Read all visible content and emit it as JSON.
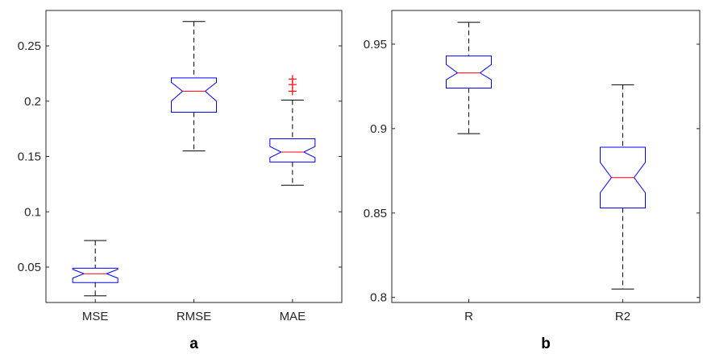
{
  "chart_data": [
    {
      "type": "box",
      "panel_label": "a",
      "categories": [
        "MSE",
        "RMSE",
        "MAE"
      ],
      "ylim": [
        0.018,
        0.282
      ],
      "yticks": [
        0.05,
        0.1,
        0.15,
        0.2,
        0.25
      ],
      "ytick_labels": [
        "0.05",
        "0.1",
        "0.15",
        "0.2",
        "0.25"
      ],
      "notched": true,
      "boxes": [
        {
          "name": "MSE",
          "whisker_low": 0.024,
          "q1": 0.036,
          "median": 0.044,
          "q3": 0.049,
          "whisker_high": 0.074,
          "notch_low": 0.04,
          "notch_high": 0.048,
          "outliers": []
        },
        {
          "name": "RMSE",
          "whisker_low": 0.155,
          "q1": 0.19,
          "median": 0.209,
          "q3": 0.221,
          "whisker_high": 0.272,
          "notch_low": 0.2,
          "notch_high": 0.217,
          "outliers": []
        },
        {
          "name": "MAE",
          "whisker_low": 0.124,
          "q1": 0.145,
          "median": 0.154,
          "q3": 0.166,
          "whisker_high": 0.201,
          "notch_low": 0.149,
          "notch_high": 0.159,
          "outliers": [
            0.209,
            0.215,
            0.22
          ]
        }
      ],
      "grid": false,
      "box_color": "#0000ff",
      "median_color": "#ff0000",
      "whisker_color": "#000000",
      "outlier_color": "#ff0000"
    },
    {
      "type": "box",
      "panel_label": "b",
      "categories": [
        "R",
        "R2"
      ],
      "ylim": [
        0.797,
        0.97
      ],
      "yticks": [
        0.8,
        0.85,
        0.9,
        0.95
      ],
      "ytick_labels": [
        "0.8",
        "0.85",
        "0.9",
        "0.95"
      ],
      "notched": true,
      "boxes": [
        {
          "name": "R",
          "whisker_low": 0.897,
          "q1": 0.924,
          "median": 0.933,
          "q3": 0.943,
          "whisker_high": 0.963,
          "notch_low": 0.929,
          "notch_high": 0.938,
          "outliers": []
        },
        {
          "name": "R2",
          "whisker_low": 0.805,
          "q1": 0.853,
          "median": 0.871,
          "q3": 0.889,
          "whisker_high": 0.926,
          "notch_low": 0.862,
          "notch_high": 0.88,
          "outliers": []
        }
      ],
      "grid": false,
      "box_color": "#0000ff",
      "median_color": "#ff0000",
      "whisker_color": "#000000",
      "outlier_color": "#ff0000"
    }
  ]
}
